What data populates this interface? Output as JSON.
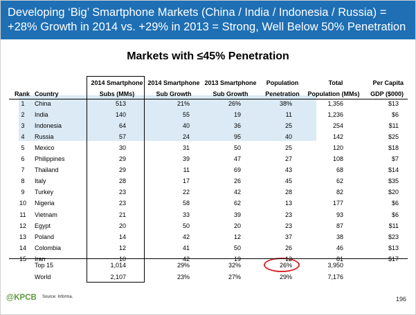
{
  "header": {
    "line1": "Developing ‘Big’ Smartphone Markets (China / India / Indonesia / Russia) =",
    "line2": "+28% Growth in 2014 vs. +29% in 2013 = Strong, Well Below 50% Penetration"
  },
  "subtitle": "Markets with ≤45% Penetration",
  "table": {
    "headers": {
      "rank": "Rank",
      "country": "Country",
      "subs_l1": "2014 Smartphone",
      "subs_l2": "Subs (MMs)",
      "g14_l1": "2014 Smartphone",
      "g14_l2": "Sub Growth",
      "g13_l1": "2013 Smartphone",
      "g13_l2": "Sub Growth",
      "pen_l1": "Population",
      "pen_l2": "Penetration",
      "pop_l1": "Total",
      "pop_l2": "Population (MMs)",
      "gdp_l1": "Per Capita",
      "gdp_l2": "GDP ($000)"
    },
    "rows": [
      {
        "rank": "1",
        "country": "China",
        "subs": "513",
        "g14": "21%",
        "g13": "26%",
        "pen": "38%",
        "pop": "1,356",
        "gdp": "$13"
      },
      {
        "rank": "2",
        "country": "India",
        "subs": "140",
        "g14": "55",
        "g13": "19",
        "pen": "11",
        "pop": "1,236",
        "gdp": "$6"
      },
      {
        "rank": "3",
        "country": "Indonesia",
        "subs": "64",
        "g14": "40",
        "g13": "36",
        "pen": "25",
        "pop": "254",
        "gdp": "$11"
      },
      {
        "rank": "4",
        "country": "Russia",
        "subs": "57",
        "g14": "24",
        "g13": "95",
        "pen": "40",
        "pop": "142",
        "gdp": "$25"
      },
      {
        "rank": "5",
        "country": "Mexico",
        "subs": "30",
        "g14": "31",
        "g13": "50",
        "pen": "25",
        "pop": "120",
        "gdp": "$18"
      },
      {
        "rank": "6",
        "country": "Philippines",
        "subs": "29",
        "g14": "39",
        "g13": "47",
        "pen": "27",
        "pop": "108",
        "gdp": "$7"
      },
      {
        "rank": "7",
        "country": "Thailand",
        "subs": "29",
        "g14": "11",
        "g13": "69",
        "pen": "43",
        "pop": "68",
        "gdp": "$14"
      },
      {
        "rank": "8",
        "country": "Italy",
        "subs": "28",
        "g14": "17",
        "g13": "26",
        "pen": "45",
        "pop": "62",
        "gdp": "$35"
      },
      {
        "rank": "9",
        "country": "Turkey",
        "subs": "23",
        "g14": "22",
        "g13": "42",
        "pen": "28",
        "pop": "82",
        "gdp": "$20"
      },
      {
        "rank": "10",
        "country": "Nigeria",
        "subs": "23",
        "g14": "58",
        "g13": "62",
        "pen": "13",
        "pop": "177",
        "gdp": "$6"
      },
      {
        "rank": "11",
        "country": "Vietnam",
        "subs": "21",
        "g14": "33",
        "g13": "39",
        "pen": "23",
        "pop": "93",
        "gdp": "$6"
      },
      {
        "rank": "12",
        "country": "Egypt",
        "subs": "20",
        "g14": "50",
        "g13": "20",
        "pen": "23",
        "pop": "87",
        "gdp": "$11"
      },
      {
        "rank": "13",
        "country": "Poland",
        "subs": "14",
        "g14": "42",
        "g13": "12",
        "pen": "37",
        "pop": "38",
        "gdp": "$23"
      },
      {
        "rank": "14",
        "country": "Colombia",
        "subs": "12",
        "g14": "41",
        "g13": "50",
        "pen": "26",
        "pop": "46",
        "gdp": "$13"
      },
      {
        "rank": "15",
        "country": "Iran",
        "subs": "10",
        "g14": "42",
        "g13": "19",
        "pen": "12",
        "pop": "81",
        "gdp": "$17"
      }
    ],
    "totals": [
      {
        "label": "Top 15",
        "subs": "1,014",
        "g14": "29%",
        "g13": "32%",
        "pen": "26%",
        "pop": "3,950"
      },
      {
        "label": "World",
        "subs": "2,107",
        "g14": "23%",
        "g13": "27%",
        "pen": "29%",
        "pop": "7,176"
      }
    ]
  },
  "footer": {
    "logo": "@KPCB",
    "source": "Source: Informa.",
    "page": "196"
  },
  "colors": {
    "header_bg": "#1e6fb4",
    "highlight": "#dbeaf4",
    "circle": "#d9262b",
    "logo": "#5b9a3e"
  }
}
